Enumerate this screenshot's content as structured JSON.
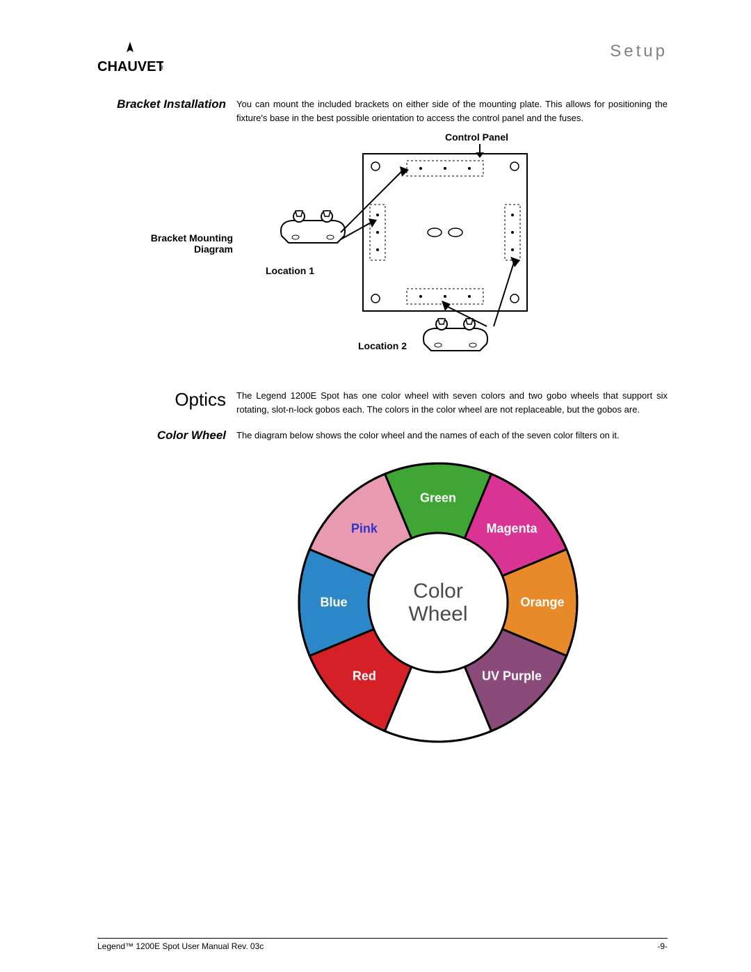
{
  "header": {
    "brand": "CHAUVET",
    "page_section": "Setup"
  },
  "bracket_installation": {
    "heading": "Bracket Installation",
    "body": "You can mount the included brackets on either side of the mounting plate. This allows for positioning the fixture's base in the best possible orientation to access the control panel and the fuses.",
    "diagram_heading": "Bracket Mounting Diagram",
    "labels": {
      "control_panel": "Control Panel",
      "location1": "Location 1",
      "location2": "Location 2"
    }
  },
  "optics": {
    "heading": "Optics",
    "body": "The Legend 1200E Spot has one color wheel with seven colors and two gobo wheels that support six rotating, slot-n-lock gobos each. The colors in the color wheel are not replaceable, but the gobos are."
  },
  "color_wheel_section": {
    "heading": "Color Wheel",
    "body": "The diagram below shows the color wheel and the names of each of the seven color filters on it."
  },
  "color_wheel": {
    "center_line1": "Color",
    "center_line2": "Wheel",
    "center_text_color": "#4a4a4a",
    "outline_color": "#000000",
    "outline_width": 3,
    "radius_outer": 200,
    "radius_inner": 100,
    "segments": [
      {
        "label": "Green",
        "color": "#3fa535",
        "text_color": "#ffffff",
        "angle_center": 270
      },
      {
        "label": "Magenta",
        "color": "#d93493",
        "text_color": "#ffffff",
        "angle_center": 315
      },
      {
        "label": "Orange",
        "color": "#e88a2a",
        "text_color": "#ffffff",
        "angle_center": 0
      },
      {
        "label": "UV Purple",
        "color": "#8a4a7a",
        "text_color": "#ffffff",
        "angle_center": 45
      },
      {
        "label": "",
        "color": "#ffffff",
        "text_color": "#ffffff",
        "angle_center": 90
      },
      {
        "label": "Red",
        "color": "#d62027",
        "text_color": "#ffffff",
        "angle_center": 135
      },
      {
        "label": "Blue",
        "color": "#2b87c7",
        "text_color": "#ffffff",
        "angle_center": 180
      },
      {
        "label": "Pink",
        "color": "#e89bb0",
        "text_color": "#3333cc",
        "angle_center": 225
      }
    ]
  },
  "footer": {
    "left": "Legend™ 1200E Spot User Manual Rev. 03c",
    "right": "-9-"
  }
}
